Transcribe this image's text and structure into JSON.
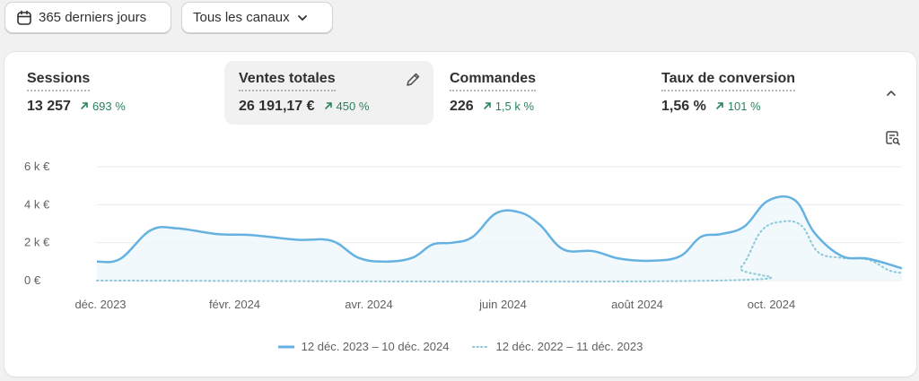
{
  "filters": {
    "range": {
      "label": "365 derniers jours",
      "icon": "calendar-icon"
    },
    "channel": {
      "label": "Tous les canaux",
      "icon": "chevron-down-icon"
    }
  },
  "metrics": [
    {
      "label": "Sessions",
      "value": "13 257",
      "change": "693 %"
    },
    {
      "label": "Ventes totales",
      "value": "26 191,17 €",
      "change": "450 %"
    },
    {
      "label": "Commandes",
      "value": "226",
      "change": "1,5 k %"
    },
    {
      "label": "Taux de conversion",
      "value": "1,56 %",
      "change": "101 %"
    }
  ],
  "colors": {
    "current": "#65b2e1",
    "previous": "#8ec7d9",
    "positive": "#29845a",
    "grid": "#ebebeb"
  },
  "chart_data": {
    "type": "line",
    "yticks": [
      "6 k €",
      "4 k €",
      "2 k €",
      "0 €"
    ],
    "ylim": [
      0,
      6000
    ],
    "xlim": [
      0,
      12
    ],
    "xticks": [
      {
        "label": "déc. 2023",
        "x": 0
      },
      {
        "label": "févr. 2024",
        "x": 2
      },
      {
        "label": "avr. 2024",
        "x": 4
      },
      {
        "label": "juin 2024",
        "x": 6
      },
      {
        "label": "août 2024",
        "x": 8
      },
      {
        "label": "oct. 2024",
        "x": 10
      }
    ],
    "series": [
      {
        "name": "12 déc. 2023 – 10 déc. 2024",
        "style": "solid",
        "x": [
          0,
          0.35,
          0.8,
          1.2,
          1.8,
          2.3,
          3.0,
          3.5,
          3.9,
          4.3,
          4.7,
          5.0,
          5.3,
          5.6,
          5.95,
          6.3,
          6.6,
          6.95,
          7.4,
          7.8,
          8.3,
          8.7,
          9.0,
          9.3,
          9.65,
          10.0,
          10.4,
          10.7,
          11.1,
          11.5,
          12.0
        ],
        "y": [
          1000,
          1150,
          2650,
          2750,
          2450,
          2400,
          2150,
          2100,
          1200,
          1000,
          1200,
          1900,
          2000,
          2300,
          3550,
          3600,
          2950,
          1650,
          1550,
          1150,
          1050,
          1300,
          2300,
          2450,
          2850,
          4200,
          4250,
          2500,
          1300,
          1150,
          650
        ]
      },
      {
        "name": "12 déc. 2022 – 11 déc. 2023",
        "style": "dotted",
        "x": [
          0,
          9.2,
          9.6,
          9.9,
          10.2,
          10.5,
          10.75,
          11.1,
          11.5,
          11.8,
          12.0
        ],
        "y": [
          0,
          0,
          700,
          2600,
          3100,
          2900,
          1500,
          1200,
          1100,
          550,
          400
        ]
      }
    ]
  }
}
